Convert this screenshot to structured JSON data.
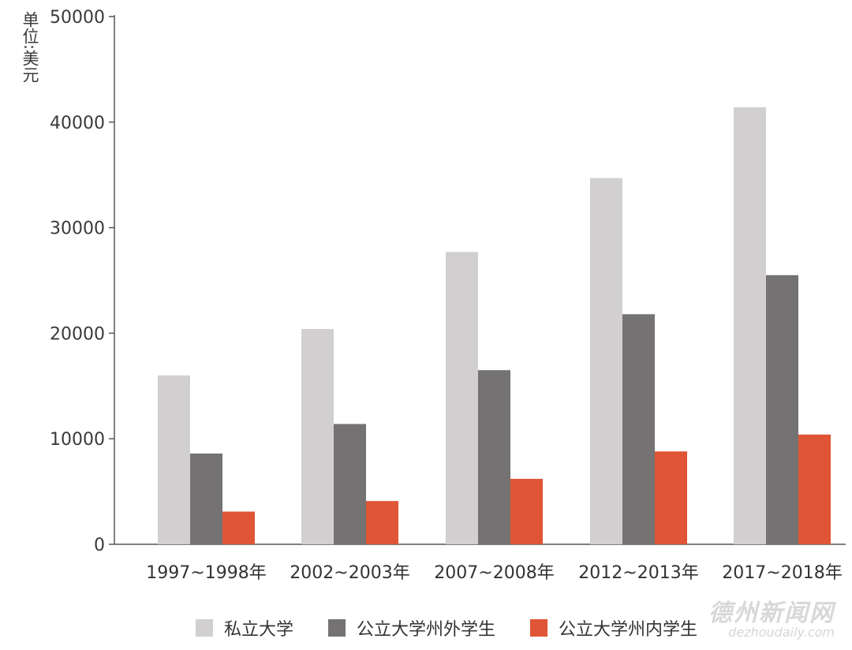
{
  "unit_label": "单位:美元",
  "legend": [
    {
      "label": "私立大学",
      "color": "#d1cfd0"
    },
    {
      "label": "公立大学州外学生",
      "color": "#747272"
    },
    {
      "label": "公立大学州内学生",
      "color": "#df5535"
    }
  ],
  "watermark": {
    "main": "德州新闻网",
    "sub": "dezhoudaily.com"
  },
  "chart_data": {
    "type": "bar",
    "categories": [
      "1997~1998年",
      "2002~2003年",
      "2007~2008年",
      "2012~2013年",
      "2017~2018年"
    ],
    "series": [
      {
        "name": "私立大学",
        "color": "#d1cfd0",
        "values": [
          16000,
          20400,
          27700,
          34700,
          41400
        ]
      },
      {
        "name": "公立大学州外学生",
        "color": "#747272",
        "values": [
          8600,
          11400,
          16500,
          21800,
          25500
        ]
      },
      {
        "name": "公立大学州内学生",
        "color": "#df5535",
        "values": [
          3100,
          4100,
          6200,
          8800,
          10400
        ]
      }
    ],
    "yticks": [
      0,
      10000,
      20000,
      30000,
      40000,
      50000
    ],
    "ylim": [
      0,
      50000
    ],
    "ylabel": "单位:美元",
    "grid": false,
    "legend_position": "bottom"
  }
}
